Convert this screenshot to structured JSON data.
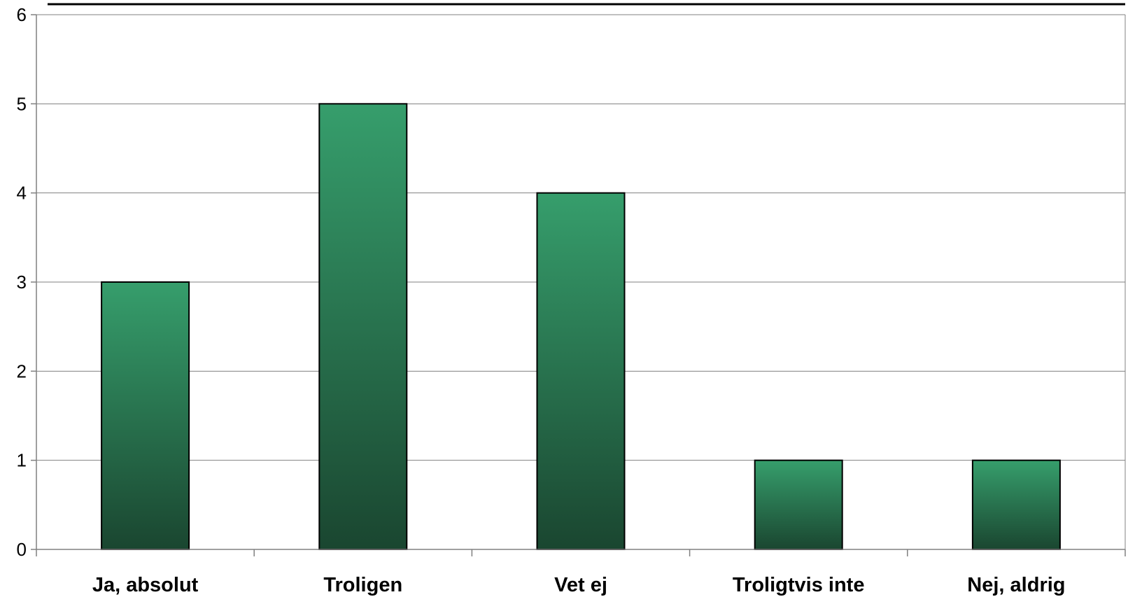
{
  "chart_data": {
    "type": "bar",
    "categories": [
      "Ja, absolut",
      "Troligen",
      "Vet ej",
      "Troligtvis inte",
      "Nej, aldrig"
    ],
    "values": [
      3,
      5,
      4,
      1,
      1
    ],
    "title": "",
    "xlabel": "",
    "ylabel": "",
    "ylim": [
      0,
      6
    ],
    "yticks": [
      0,
      1,
      2,
      3,
      4,
      5,
      6
    ],
    "grid": true,
    "legend": "none",
    "colors": {
      "bar_top": "#369e6c",
      "bar_bottom": "#1a4630",
      "bar_border": "#000000",
      "grid": "#808080",
      "top_rule": "#000000"
    }
  }
}
